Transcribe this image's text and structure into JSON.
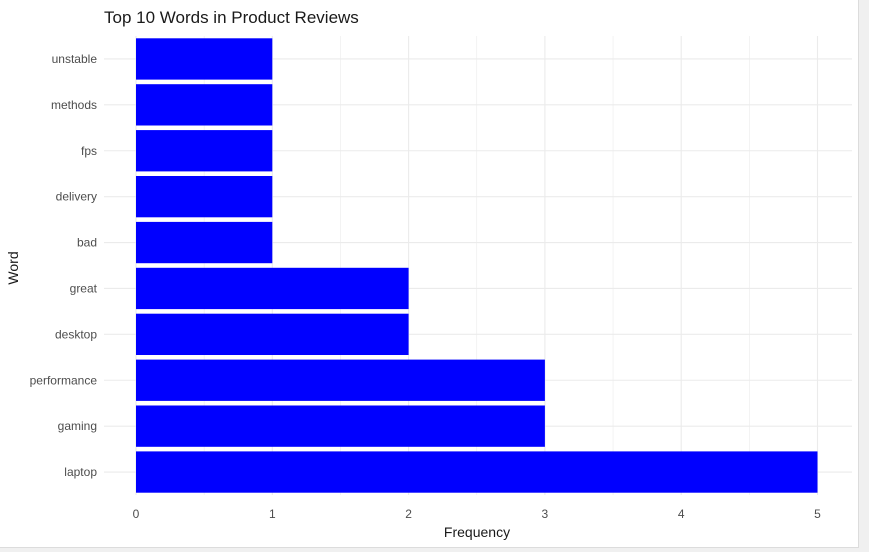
{
  "chart_data": {
    "type": "bar",
    "orientation": "horizontal",
    "title": "Top 10 Words in Product Reviews",
    "xlabel": "Frequency",
    "ylabel": "Word",
    "categories": [
      "laptop",
      "gaming",
      "performance",
      "desktop",
      "great",
      "bad",
      "delivery",
      "fps",
      "methods",
      "unstable"
    ],
    "values": [
      5,
      3,
      3,
      2,
      2,
      1,
      1,
      1,
      1,
      1
    ],
    "xlim": [
      0,
      5
    ],
    "x_ticks": [
      "0",
      "1",
      "2",
      "3",
      "4",
      "5"
    ],
    "grid": true,
    "legend": "none",
    "bar_color": "#0000ff",
    "grid_color": "#ebebeb"
  }
}
